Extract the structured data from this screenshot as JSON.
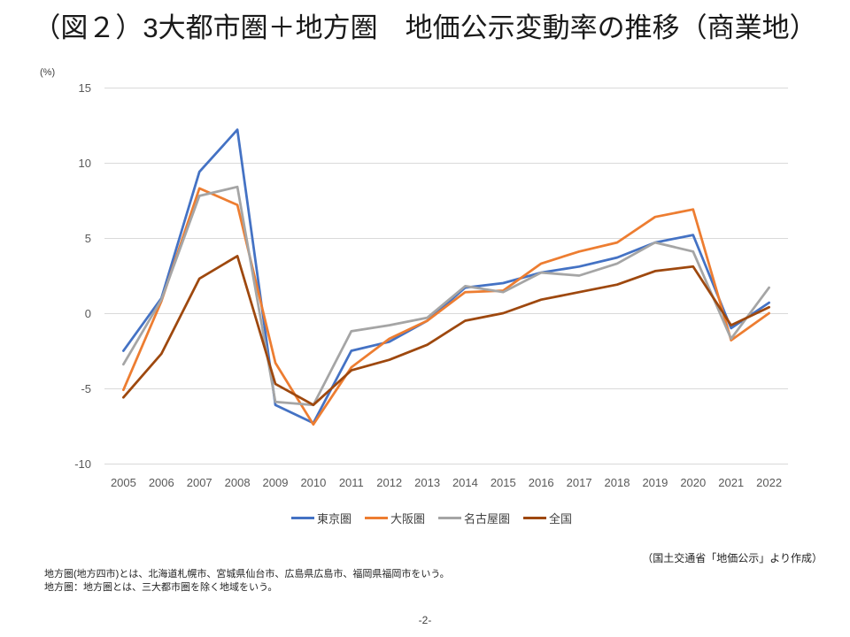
{
  "chart_data": {
    "type": "line",
    "title": "（図２）3大都市圏＋地方圏　地価公示変動率の推移（商業地）",
    "ylabel": "(%)",
    "x": [
      "2005",
      "2006",
      "2007",
      "2008",
      "2009",
      "2010",
      "2011",
      "2012",
      "2013",
      "2014",
      "2015",
      "2016",
      "2017",
      "2018",
      "2019",
      "2020",
      "2021",
      "2022"
    ],
    "ylim": [
      -10,
      15
    ],
    "yticks": [
      15,
      10,
      5,
      0,
      -5,
      -10
    ],
    "grid": true,
    "legend": "bottom",
    "series": [
      {
        "name": "東京圏",
        "color": "#4472C4",
        "values": [
          -2.5,
          1.0,
          9.4,
          12.2,
          -6.1,
          -7.3,
          -2.5,
          -1.9,
          -0.5,
          1.7,
          2.0,
          2.7,
          3.1,
          3.7,
          4.7,
          5.2,
          -1.0,
          0.7
        ]
      },
      {
        "name": "大阪圏",
        "color": "#ED7D31",
        "values": [
          -5.1,
          0.8,
          8.3,
          7.2,
          -3.3,
          -7.4,
          -3.6,
          -1.7,
          -0.5,
          1.4,
          1.5,
          3.3,
          4.1,
          4.7,
          6.4,
          6.9,
          -1.8,
          0.0
        ]
      },
      {
        "name": "名古屋圏",
        "color": "#A5A5A5",
        "values": [
          -3.4,
          0.9,
          7.8,
          8.4,
          -5.9,
          -6.1,
          -1.2,
          -0.8,
          -0.3,
          1.8,
          1.4,
          2.7,
          2.5,
          3.3,
          4.7,
          4.1,
          -1.7,
          1.7
        ]
      },
      {
        "name": "全国",
        "color": "#9E480E",
        "values": [
          -5.6,
          -2.7,
          2.3,
          3.8,
          -4.7,
          -6.1,
          -3.8,
          -3.1,
          -2.1,
          -0.5,
          0.0,
          0.9,
          1.4,
          1.9,
          2.8,
          3.1,
          -0.8,
          0.4
        ]
      }
    ]
  },
  "source_note": "（国土交通省「地価公示」より作成）",
  "footnotes": [
    "地方圏(地方四市)とは、北海道札幌市、宮城県仙台市、広島県広島市、福岡県福岡市をいう。",
    "地方圏：地方圏とは、三大都市圏を除く地域をいう。"
  ],
  "page_number": "-2-"
}
